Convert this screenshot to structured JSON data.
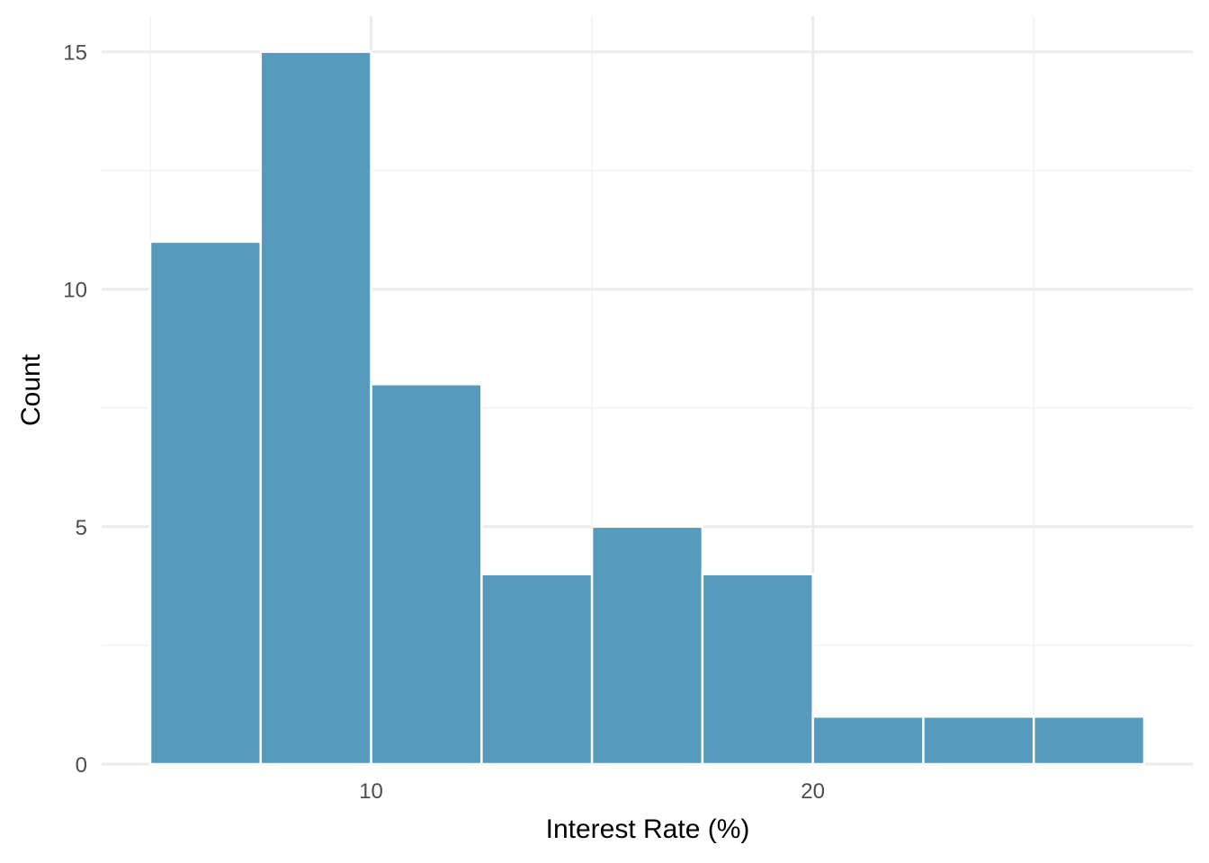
{
  "chart_data": {
    "type": "bar",
    "subtype": "histogram",
    "title": "",
    "xlabel": "Interest Rate (%)",
    "ylabel": "Count",
    "bin_width": 2.5,
    "bins": [
      {
        "x_start": 5,
        "x_end": 7.5,
        "count": 11
      },
      {
        "x_start": 7.5,
        "x_end": 10,
        "count": 15
      },
      {
        "x_start": 10,
        "x_end": 12.5,
        "count": 8
      },
      {
        "x_start": 12.5,
        "x_end": 15,
        "count": 4
      },
      {
        "x_start": 15,
        "x_end": 17.5,
        "count": 5
      },
      {
        "x_start": 17.5,
        "x_end": 20,
        "count": 4
      },
      {
        "x_start": 20,
        "x_end": 22.5,
        "count": 1
      },
      {
        "x_start": 22.5,
        "x_end": 25,
        "count": 1
      },
      {
        "x_start": 25,
        "x_end": 27.5,
        "count": 1
      }
    ],
    "xlim": [
      3.9,
      28.6
    ],
    "ylim": [
      0,
      15.75
    ],
    "x_major_ticks": [
      10,
      20
    ],
    "x_tick_labels": [
      "10",
      "20"
    ],
    "x_minor_gridlines": [
      5,
      15,
      25
    ],
    "y_major_ticks": [
      0,
      5,
      10,
      15
    ],
    "y_tick_labels": [
      "0",
      "5",
      "10",
      "15"
    ],
    "y_minor_gridlines": [
      2.5,
      7.5,
      12.5
    ],
    "grid": true,
    "legend": "none",
    "colors": {
      "bar_fill": "#569bbd",
      "bar_edge": "#ffffff",
      "grid_major": "#ebebeb",
      "grid_minor": "#f2f2f2",
      "tick_text": "#4d4d4d",
      "title_text": "#000000"
    }
  }
}
